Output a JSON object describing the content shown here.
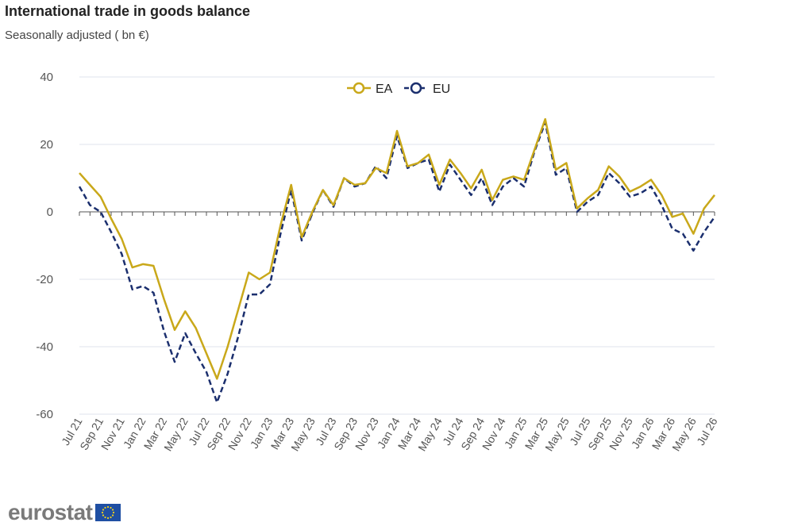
{
  "header": {
    "title": "International trade in goods balance",
    "subtitle": "Seasonally adjusted ( bn €)"
  },
  "footer": {
    "logo_text": "eurostat"
  },
  "colors": {
    "EA": "#c9a81a",
    "EU": "#1b2f6e",
    "grid": "#dfe3ee",
    "axis": "#555555"
  },
  "chart_data": {
    "type": "line",
    "title": "International trade in goods balance",
    "subtitle": "Seasonally adjusted ( bn €)",
    "xlabel": "",
    "ylabel": "",
    "ylim": [
      -60,
      40
    ],
    "yticks": [
      40,
      20,
      0,
      -20,
      -40,
      -60
    ],
    "grid": true,
    "legend_position": "top-center",
    "x": [
      "Jul 21",
      "Aug 21",
      "Sep 21",
      "Oct 21",
      "Nov 21",
      "Dec 21",
      "Jan 22",
      "Feb 22",
      "Mar 22",
      "Apr 22",
      "May 22",
      "Jun 22",
      "Jul 22",
      "Aug 22",
      "Sep 22",
      "Oct 22",
      "Nov 22",
      "Dec 22",
      "Jan 23",
      "Feb 23",
      "Mar 23",
      "Apr 23",
      "May 23",
      "Jun 23",
      "Jul 23",
      "Aug 23",
      "Sep 23",
      "Oct 23",
      "Nov 23",
      "Dec 23",
      "Jan 24",
      "Feb 24",
      "Mar 24",
      "Apr 24",
      "May 24",
      "Jun 24",
      "Jul 24",
      "Aug 24",
      "Sep 24",
      "Oct 24",
      "Nov 24",
      "Dec 24",
      "Jan 25",
      "Feb 25",
      "Mar 25",
      "Apr 25",
      "May 25",
      "Jun 25",
      "Jul 25",
      "Aug 25",
      "Sep 25",
      "Oct 25",
      "Nov 25",
      "Dec 25",
      "Jan 26",
      "Feb 26",
      "Mar 26",
      "Apr 26",
      "May 26",
      "Jun 26",
      "Jul 26"
    ],
    "x_tick_labels": [
      "Jul 21",
      "Sep 21",
      "Nov 21",
      "Jan 22",
      "Mar 22",
      "May 22",
      "Jul 22",
      "Sep 22",
      "Nov 22",
      "Jan 23",
      "Mar 23",
      "May 23",
      "Jul 23",
      "Sep 23",
      "Nov 23",
      "Jan 24",
      "Mar 24",
      "May 24",
      "Jul 24",
      "Sep 24",
      "Nov 24",
      "Jan 25",
      "Mar 25",
      "May 25",
      "Jul 25",
      "Sep 25",
      "Nov 25",
      "Jan 26",
      "Mar 26",
      "May 26",
      "Jul 26"
    ],
    "series": [
      {
        "name": "EA",
        "style": "solid",
        "values": [
          11.5,
          8,
          4.5,
          -2,
          -8,
          -16.5,
          -15.5,
          -16,
          -26,
          -35,
          -29.5,
          -34.5,
          -42,
          -49.5,
          -40,
          -29,
          -18,
          -20,
          -18,
          -4,
          8,
          -7.5,
          0,
          6.5,
          2,
          10,
          8,
          8.5,
          13,
          11.5,
          24,
          13.5,
          14.5,
          17,
          8,
          15.5,
          11.5,
          7,
          12.5,
          3.5,
          9.5,
          10.5,
          9.5,
          18.5,
          27.5,
          12.5,
          14.5,
          1,
          4,
          6.5,
          13.5,
          10.5,
          6,
          7.5,
          9.5,
          5,
          -1.5,
          -0.5,
          -6.5,
          1,
          5
        ]
      },
      {
        "name": "EU",
        "style": "dashed",
        "values": [
          7.5,
          2,
          0,
          -6,
          -12.5,
          -23,
          -22,
          -24,
          -35.5,
          -44.5,
          -36,
          -42,
          -47.5,
          -56.5,
          -48,
          -37,
          -24.5,
          -24.5,
          -21.5,
          -6.5,
          6.5,
          -8.5,
          -0.5,
          6.5,
          1.5,
          10,
          7.5,
          8.5,
          13.5,
          10,
          22.5,
          13,
          14.5,
          15.5,
          6,
          14,
          9.5,
          5,
          10,
          2,
          7.5,
          10,
          7.5,
          18,
          26.5,
          11,
          13,
          0,
          3,
          5,
          11.5,
          8.5,
          4.5,
          5.5,
          7.5,
          2,
          -5,
          -6.5,
          -11.5,
          -6,
          -1.5
        ]
      }
    ]
  }
}
